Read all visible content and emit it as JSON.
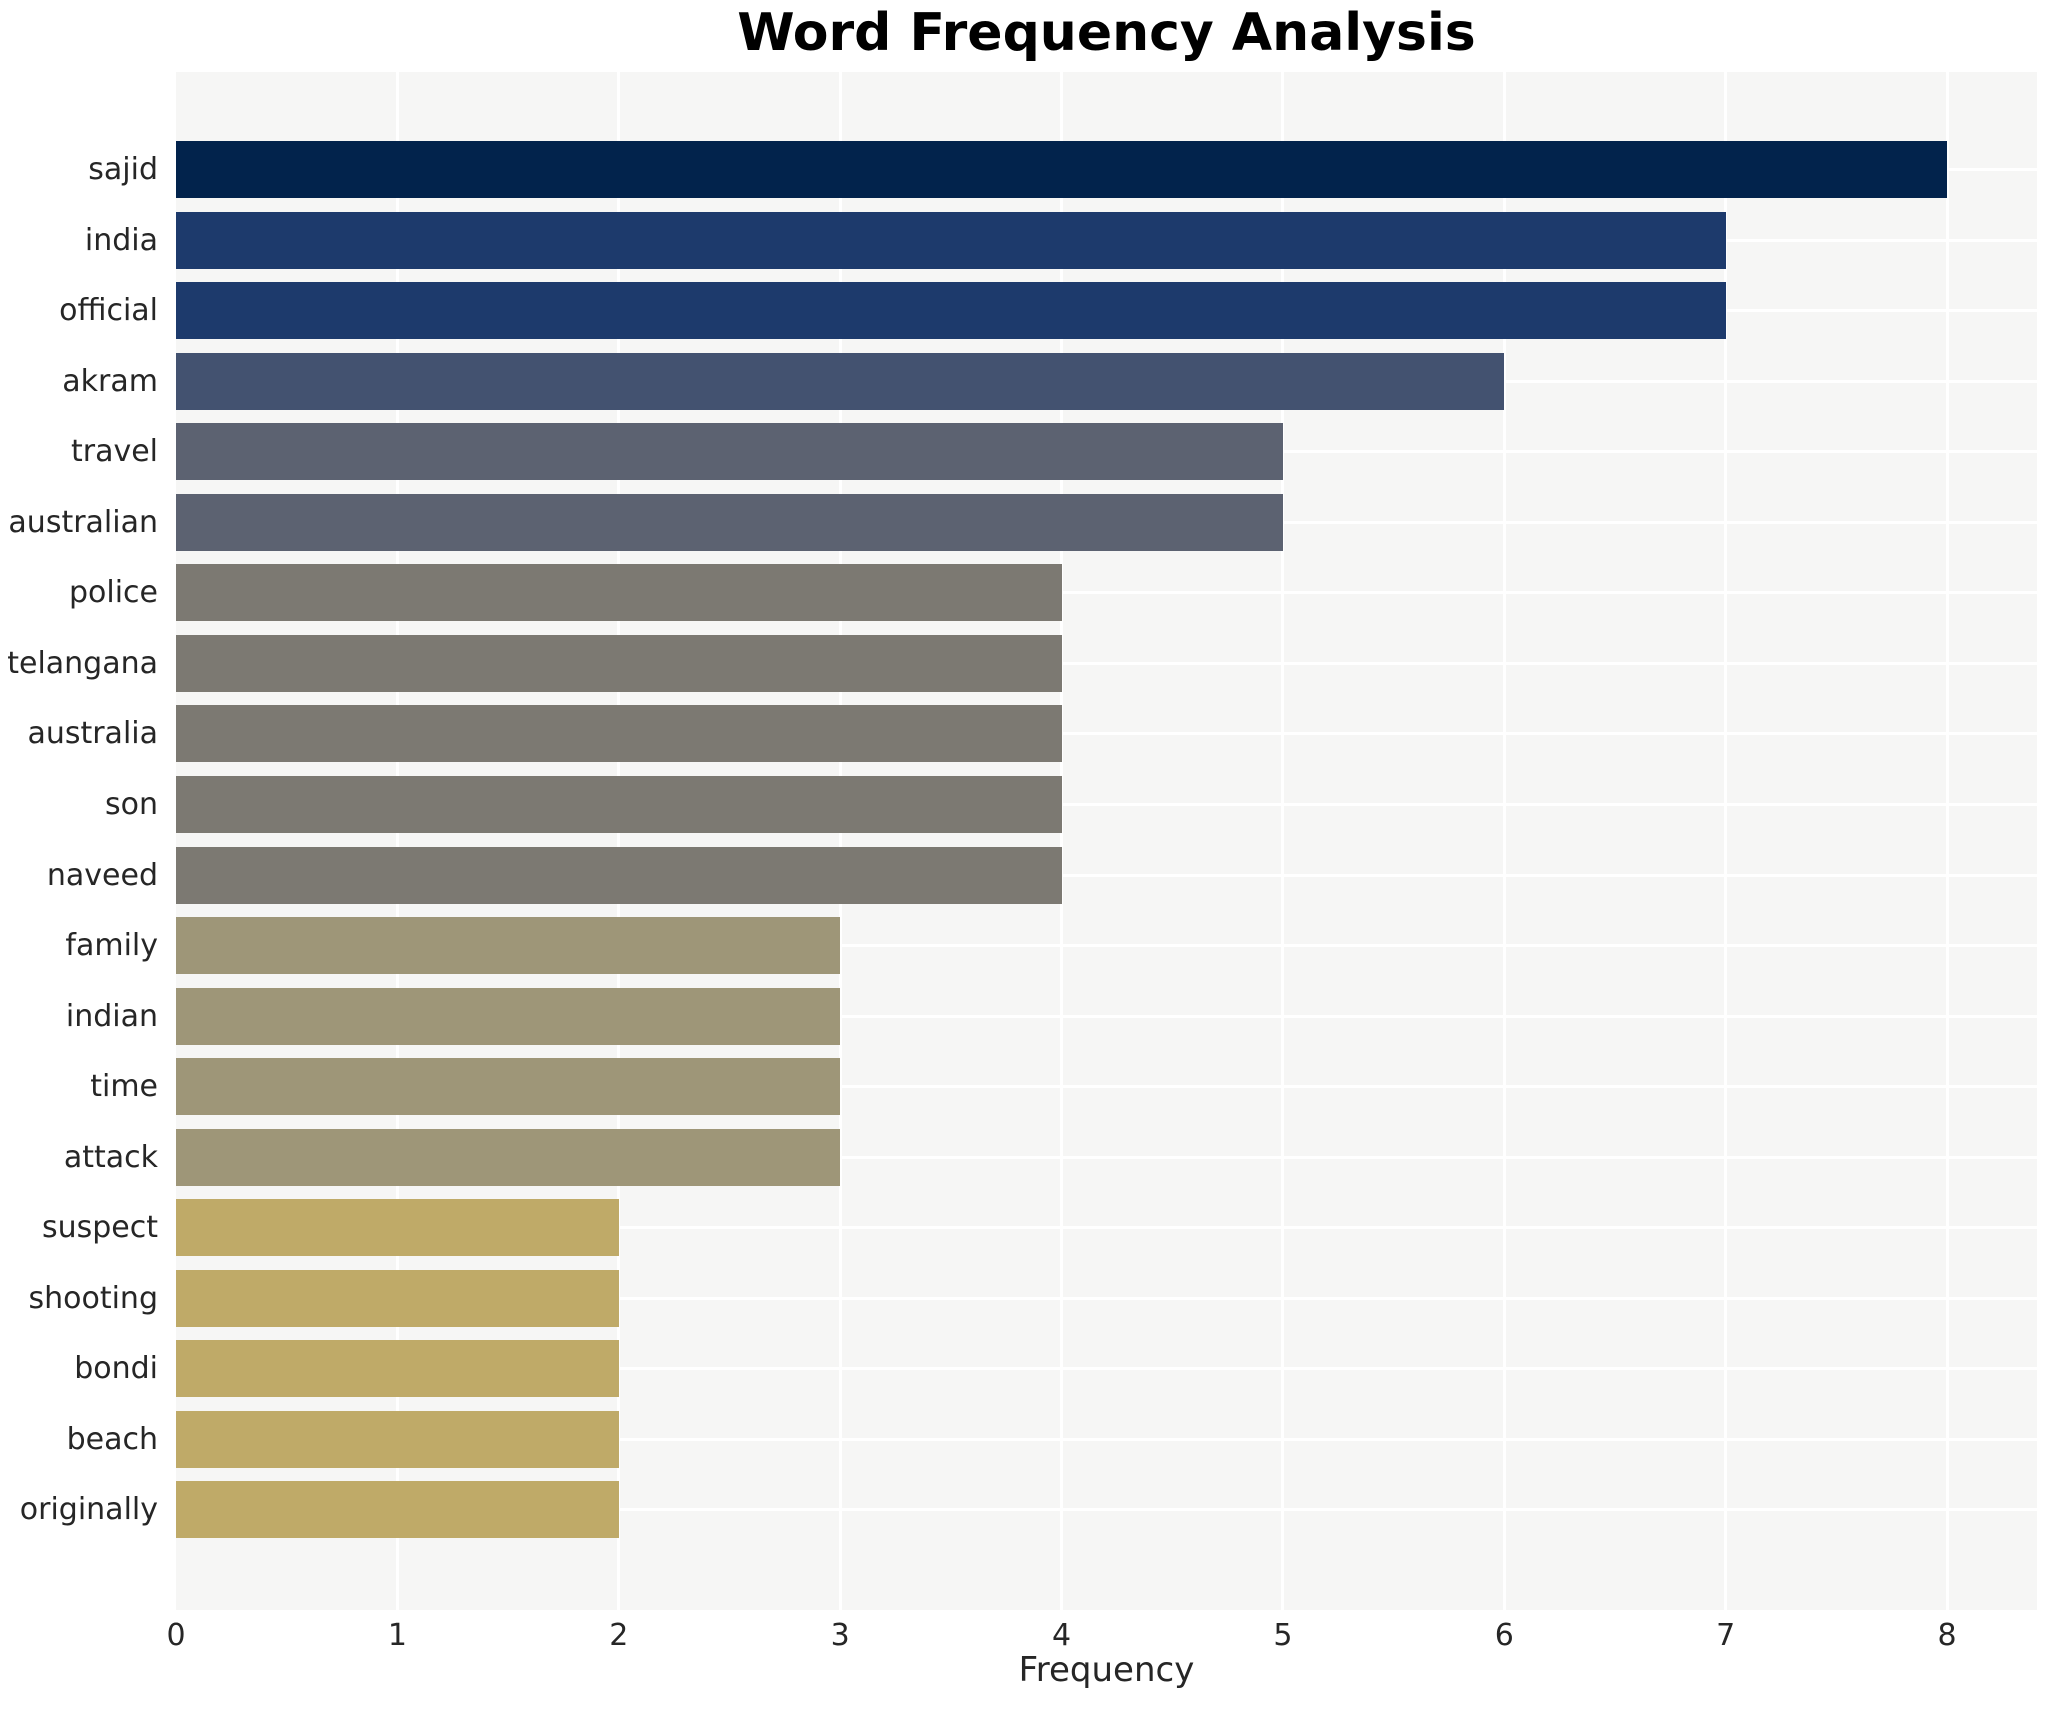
{
  "title": "Word Frequency Analysis",
  "x_axis": {
    "label": "Frequency"
  },
  "chart_data": {
    "type": "bar",
    "orientation": "horizontal",
    "title": "Word Frequency Analysis",
    "xlabel": "Frequency",
    "ylabel": "",
    "xlim": [
      0,
      8.41
    ],
    "x_ticks": [
      0,
      1,
      2,
      3,
      4,
      5,
      6,
      7,
      8
    ],
    "grid": true,
    "legend": false,
    "plot_background": "#f6f6f5",
    "grid_color": "#ffffff",
    "categories": [
      "sajid",
      "india",
      "official",
      "akram",
      "travel",
      "australian",
      "police",
      "telangana",
      "australia",
      "son",
      "naveed",
      "family",
      "indian",
      "time",
      "attack",
      "suspect",
      "shooting",
      "bondi",
      "beach",
      "originally"
    ],
    "values": [
      8,
      7,
      7,
      6,
      5,
      5,
      4,
      4,
      4,
      4,
      4,
      3,
      3,
      3,
      3,
      2,
      2,
      2,
      2,
      2
    ],
    "bar_colors_by_value": {
      "8": "#02234c",
      "7": "#1d3a6c",
      "6": "#435270",
      "5": "#5c6271",
      "4": "#7c7972",
      "3": "#9e9678",
      "2": "#bfaa68"
    },
    "text_color": "#262626",
    "title_color": "#000000"
  }
}
